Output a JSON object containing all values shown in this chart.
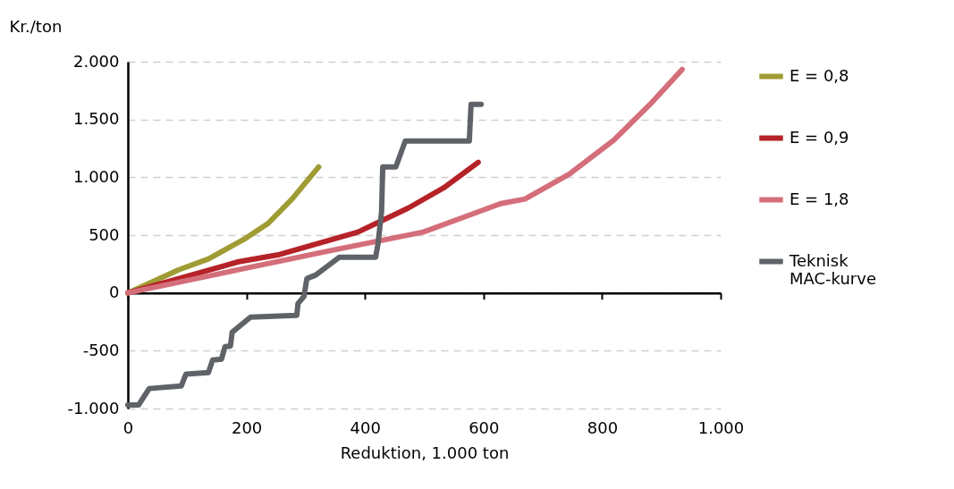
{
  "chart_data": {
    "type": "line",
    "ylabel": "Kr./ton",
    "xlabel": "Reduktion, 1.000 ton",
    "xlim": [
      0,
      1000
    ],
    "xticks": [
      0,
      200,
      400,
      600,
      800,
      {
        "value": 1000,
        "label": "1.000"
      }
    ],
    "ylim": [
      -1000,
      2000
    ],
    "yticks": [
      {
        "value": -1000,
        "label": "-1.000"
      },
      -500,
      0,
      500,
      {
        "value": 1000,
        "label": "1.000"
      },
      {
        "value": 1500,
        "label": "1.500"
      },
      {
        "value": 2000,
        "label": "2.000"
      }
    ],
    "grid": "y",
    "legend": "right",
    "line_style": "solid",
    "series": [
      {
        "name": "E = 0,8",
        "color": "#a09c34",
        "x": [
          0,
          86,
          136,
          196,
          237,
          277,
          322
        ],
        "values": [
          0,
          200,
          294,
          464,
          603,
          812,
          1090
        ]
      },
      {
        "name": "E = 0,9",
        "color": "#b52228",
        "x": [
          0,
          187,
          256,
          388,
          473,
          534,
          591
        ],
        "values": [
          0,
          270,
          332,
          526,
          734,
          912,
          1129
        ]
      },
      {
        "name": "E = 1,8",
        "color": "#d46e7a",
        "x": [
          0,
          187,
          347,
          498,
          629,
          670,
          745,
          820,
          881,
          935
        ],
        "values": [
          0,
          201,
          371,
          526,
          773,
          812,
          1028,
          1322,
          1631,
          1932
        ]
      },
      {
        "name": "Teknisk MAC-kurve",
        "color": "#5f6368",
        "x": [
          0,
          18,
          36,
          90,
          98,
          136,
          143,
          158,
          164,
          173,
          176,
          207,
          285,
          287,
          297,
          300,
          302,
          317,
          357,
          418,
          422,
          428,
          430,
          452,
          468,
          576,
          579,
          596
        ],
        "values": [
          -970,
          -970,
          -827,
          -805,
          -703,
          -688,
          -580,
          -572,
          -464,
          -460,
          -340,
          -209,
          -193,
          -93,
          -31,
          62,
          124,
          155,
          309,
          309,
          425,
          703,
          1090,
          1090,
          1314,
          1314,
          1631,
          1631
        ]
      }
    ]
  }
}
